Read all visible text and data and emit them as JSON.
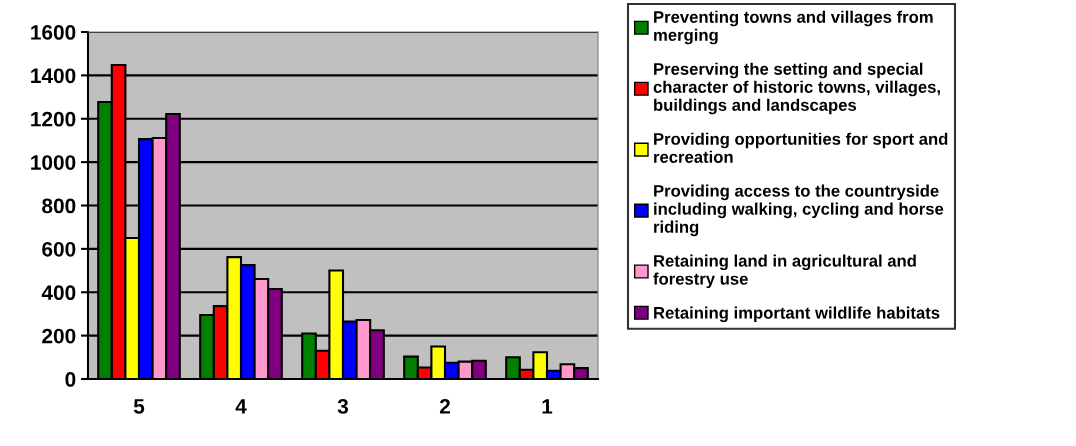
{
  "chart_data": {
    "type": "bar",
    "categories": [
      "5",
      "4",
      "3",
      "2",
      "1"
    ],
    "series": [
      {
        "name": "Preventing towns and villages from merging",
        "color": "#008000",
        "values": [
          1277,
          295,
          210,
          103,
          100
        ]
      },
      {
        "name": "Preserving the setting and special character of historic towns, villages, buildings and landscapes",
        "color": "#ff0000",
        "values": [
          1448,
          336,
          130,
          53,
          43
        ]
      },
      {
        "name": "Providing opportunities for sport and recreation",
        "color": "#ffff00",
        "values": [
          650,
          562,
          500,
          150,
          123
        ]
      },
      {
        "name": "Providing access to the countryside including walking, cycling and horse riding",
        "color": "#0000ff",
        "values": [
          1106,
          525,
          265,
          75,
          38
        ]
      },
      {
        "name": "Retaining land in agricultural and forestry use",
        "color": "#ff99cc",
        "values": [
          1111,
          461,
          272,
          80,
          68
        ]
      },
      {
        "name": "Retaining important wildlife habitats",
        "color": "#800080",
        "values": [
          1222,
          415,
          225,
          84,
          50
        ]
      }
    ],
    "ylim": [
      0,
      1600
    ],
    "yticks": [
      0,
      200,
      400,
      600,
      800,
      1000,
      1200,
      1400,
      1600
    ],
    "grid": "y",
    "legend": "right"
  }
}
